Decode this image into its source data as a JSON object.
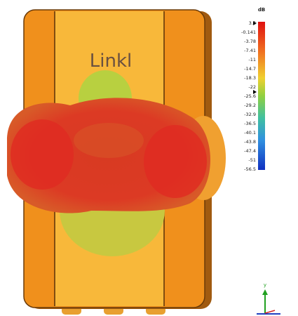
{
  "device": {
    "logo": "Linkl"
  },
  "legend": {
    "unit": "dB",
    "labels": [
      3.5,
      -0.141,
      -3.78,
      -7.41,
      -11,
      -14.7,
      -18.3,
      -22,
      -25.6,
      -29.2,
      -32.9,
      -36.5,
      -40.1,
      -43.8,
      -47.4,
      -51,
      -56.5
    ]
  },
  "axes": {
    "y": "y"
  }
}
